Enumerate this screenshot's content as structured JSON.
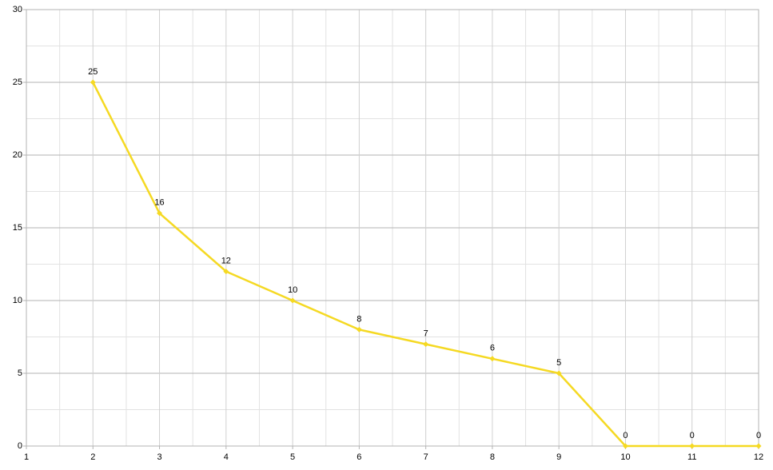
{
  "chart_data": {
    "type": "line",
    "x": [
      2,
      3,
      4,
      5,
      6,
      7,
      8,
      9,
      10,
      11,
      12
    ],
    "values": [
      25,
      16,
      12,
      10,
      8,
      7,
      6,
      5,
      0,
      0,
      0
    ],
    "color": "#f5d923",
    "xlim": [
      1,
      12
    ],
    "xticks": [
      1,
      2,
      3,
      4,
      5,
      6,
      7,
      8,
      9,
      10,
      11,
      12
    ],
    "ylim": [
      0,
      30
    ],
    "yticks": [
      0,
      5,
      10,
      15,
      20,
      25,
      30
    ],
    "grid": true,
    "minor_grid": true,
    "markers": true,
    "data_labels": true
  }
}
